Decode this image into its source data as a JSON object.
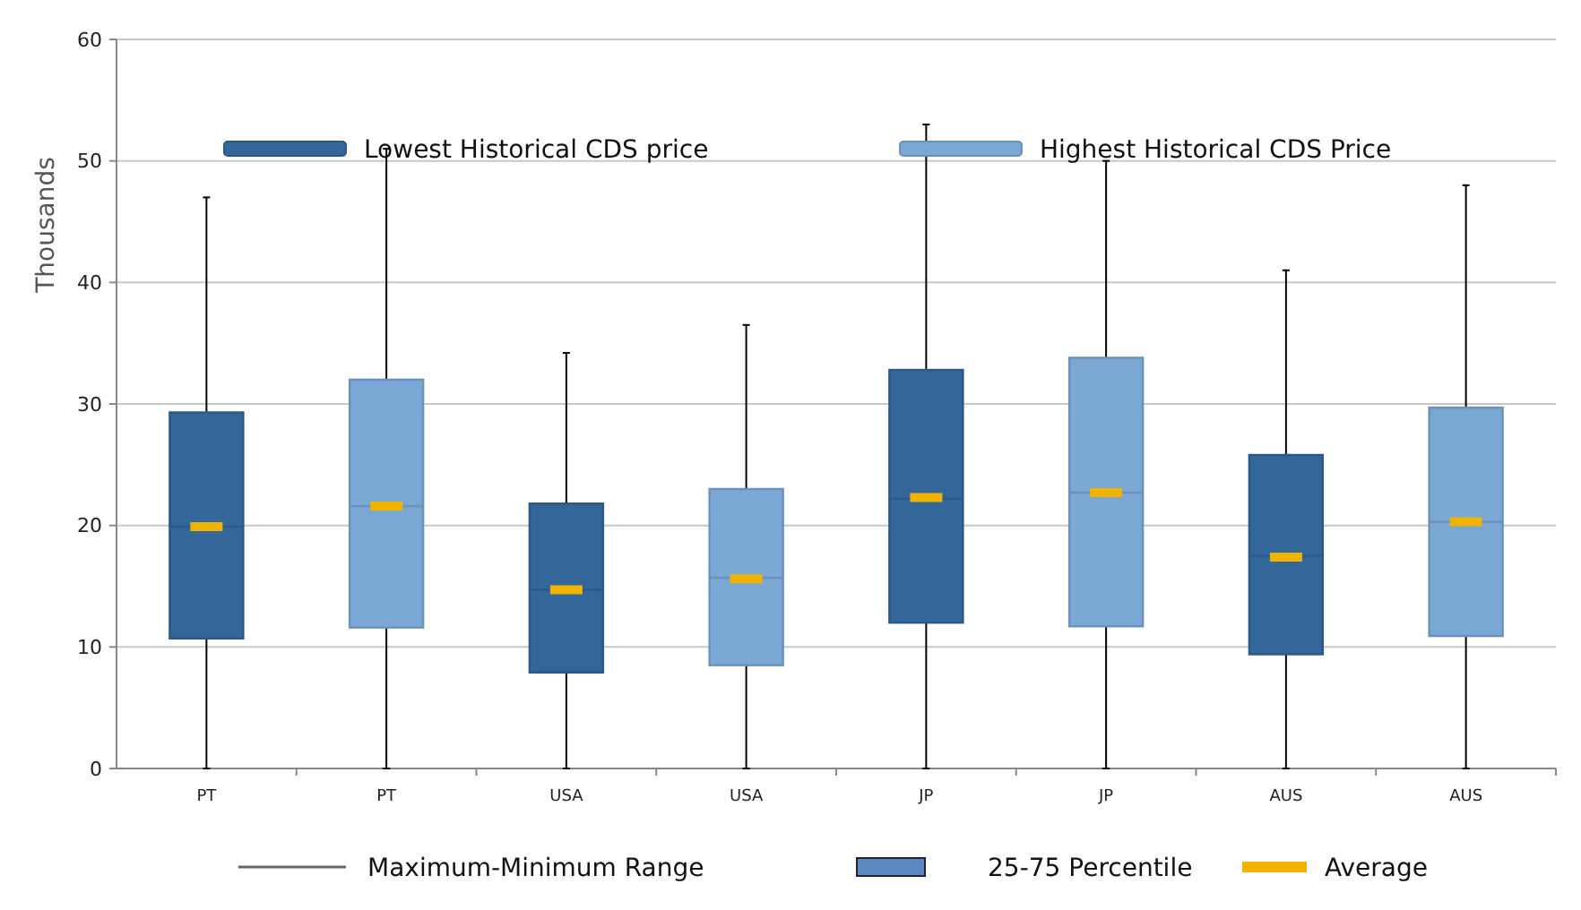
{
  "chart_data": {
    "type": "box",
    "ylabel": "Thousands",
    "categories": [
      "PT",
      "PT",
      "USA",
      "USA",
      "JP",
      "JP",
      "AUS",
      "AUS"
    ],
    "ylim": [
      0,
      60
    ],
    "yticks": [
      0,
      10,
      20,
      30,
      40,
      50,
      60
    ],
    "grid": "y",
    "legend": "top",
    "series": [
      {
        "name": "Lowest Historical CDS price",
        "color": "#336699",
        "boxes": [
          {
            "low": 0,
            "q1": 10.7,
            "median": 19.9,
            "q3": 29.3,
            "high": 47,
            "mean": 19.9
          },
          null,
          {
            "low": 0,
            "q1": 7.9,
            "median": 14.7,
            "q3": 21.8,
            "high": 34.2,
            "mean": 14.7
          },
          null,
          {
            "low": 0,
            "q1": 12,
            "median": 22.2,
            "q3": 32.8,
            "high": 53,
            "mean": 22.3
          },
          null,
          {
            "low": 0,
            "q1": 9.4,
            "median": 17.5,
            "q3": 25.8,
            "high": 41,
            "mean": 17.4
          },
          null
        ]
      },
      {
        "name": "Highest Historical CDS Price",
        "color": "#7ba7d4",
        "boxes": [
          null,
          {
            "low": 0,
            "q1": 11.6,
            "median": 21.6,
            "q3": 32,
            "high": 51,
            "mean": 21.6
          },
          null,
          {
            "low": 0,
            "q1": 8.5,
            "median": 15.7,
            "q3": 23,
            "high": 36.5,
            "mean": 15.6
          },
          null,
          {
            "low": 0,
            "q1": 11.7,
            "median": 22.7,
            "q3": 33.8,
            "high": 50,
            "mean": 22.7
          },
          null,
          {
            "low": 0,
            "q1": 10.9,
            "median": 20.3,
            "q3": 29.7,
            "high": 48,
            "mean": 20.3
          }
        ]
      }
    ],
    "annotations": [
      "Maximum-Minimum Range",
      "25-75 Percentile",
      "Average"
    ]
  }
}
